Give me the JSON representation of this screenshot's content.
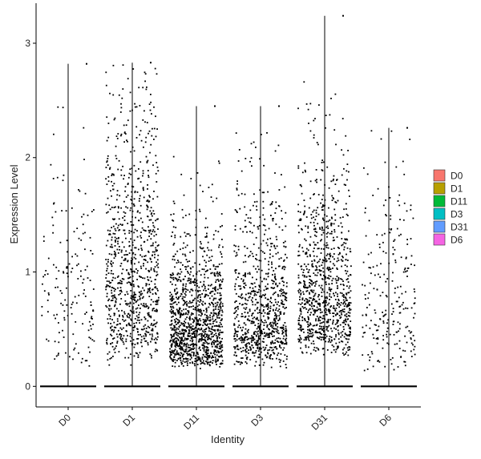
{
  "chart_data": {
    "type": "scatter",
    "subtype": "violin-jitter",
    "title": "",
    "xlabel": "Identity",
    "ylabel": "Expression Level",
    "categories": [
      "D0",
      "D1",
      "D11",
      "D3",
      "D31",
      "D6"
    ],
    "ylim": [
      -0.18,
      3.35
    ],
    "yticks": [
      0,
      1,
      2,
      3
    ],
    "grid": false,
    "legend": {
      "position": "right",
      "entries": [
        {
          "label": "D0",
          "color": "#F8766D"
        },
        {
          "label": "D1",
          "color": "#B79F00"
        },
        {
          "label": "D11",
          "color": "#00BA38"
        },
        {
          "label": "D3",
          "color": "#00BFC4"
        },
        {
          "label": "D31",
          "color": "#619CFF"
        },
        {
          "label": "D6",
          "color": "#F564E3"
        }
      ]
    },
    "groups": [
      {
        "name": "D0",
        "max": 2.82,
        "points": 160,
        "min_nonzero": 0.12,
        "mean_nonzero": 1.05
      },
      {
        "name": "D1",
        "max": 2.83,
        "points": 900,
        "min_nonzero": 0.18,
        "mean_nonzero": 1.15
      },
      {
        "name": "D11",
        "max": 2.45,
        "points": 1200,
        "min_nonzero": 0.15,
        "mean_nonzero": 0.62
      },
      {
        "name": "D3",
        "max": 2.45,
        "points": 850,
        "min_nonzero": 0.15,
        "mean_nonzero": 0.75
      },
      {
        "name": "D31",
        "max": 3.24,
        "points": 950,
        "min_nonzero": 0.25,
        "mean_nonzero": 0.95
      },
      {
        "name": "D6",
        "max": 2.26,
        "points": 240,
        "min_nonzero": 0.12,
        "mean_nonzero": 0.85
      }
    ]
  }
}
